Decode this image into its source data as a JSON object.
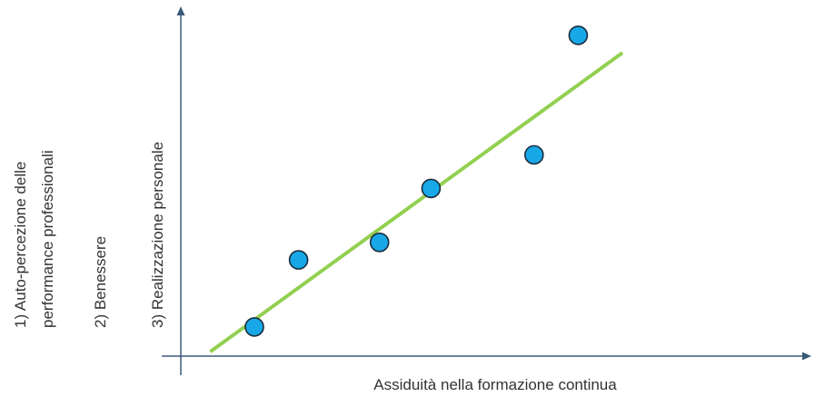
{
  "chart_data": {
    "type": "scatter",
    "title": "",
    "xlabel": "Assiduità nella formazione continua",
    "ylabel_lines": [
      "1) Auto-percezione delle",
      "performance professionali",
      "2) Benessere",
      "3) Realizzazione personale"
    ],
    "axis_color": "#3c5a78",
    "point_fill": "#18a8e8",
    "point_stroke": "#1a2b3c",
    "trend_color": "#92d050",
    "grid": false,
    "legend": "none",
    "points": [
      {
        "x": 1.0,
        "y": 1.0
      },
      {
        "x": 1.6,
        "y": 3.3
      },
      {
        "x": 2.7,
        "y": 3.9
      },
      {
        "x": 3.4,
        "y": 5.75
      },
      {
        "x": 4.8,
        "y": 6.9
      },
      {
        "x": 5.4,
        "y": 11.0
      }
    ],
    "trendline": {
      "x": [
        0.4,
        6.0
      ],
      "y": [
        0.15,
        10.4
      ]
    }
  }
}
